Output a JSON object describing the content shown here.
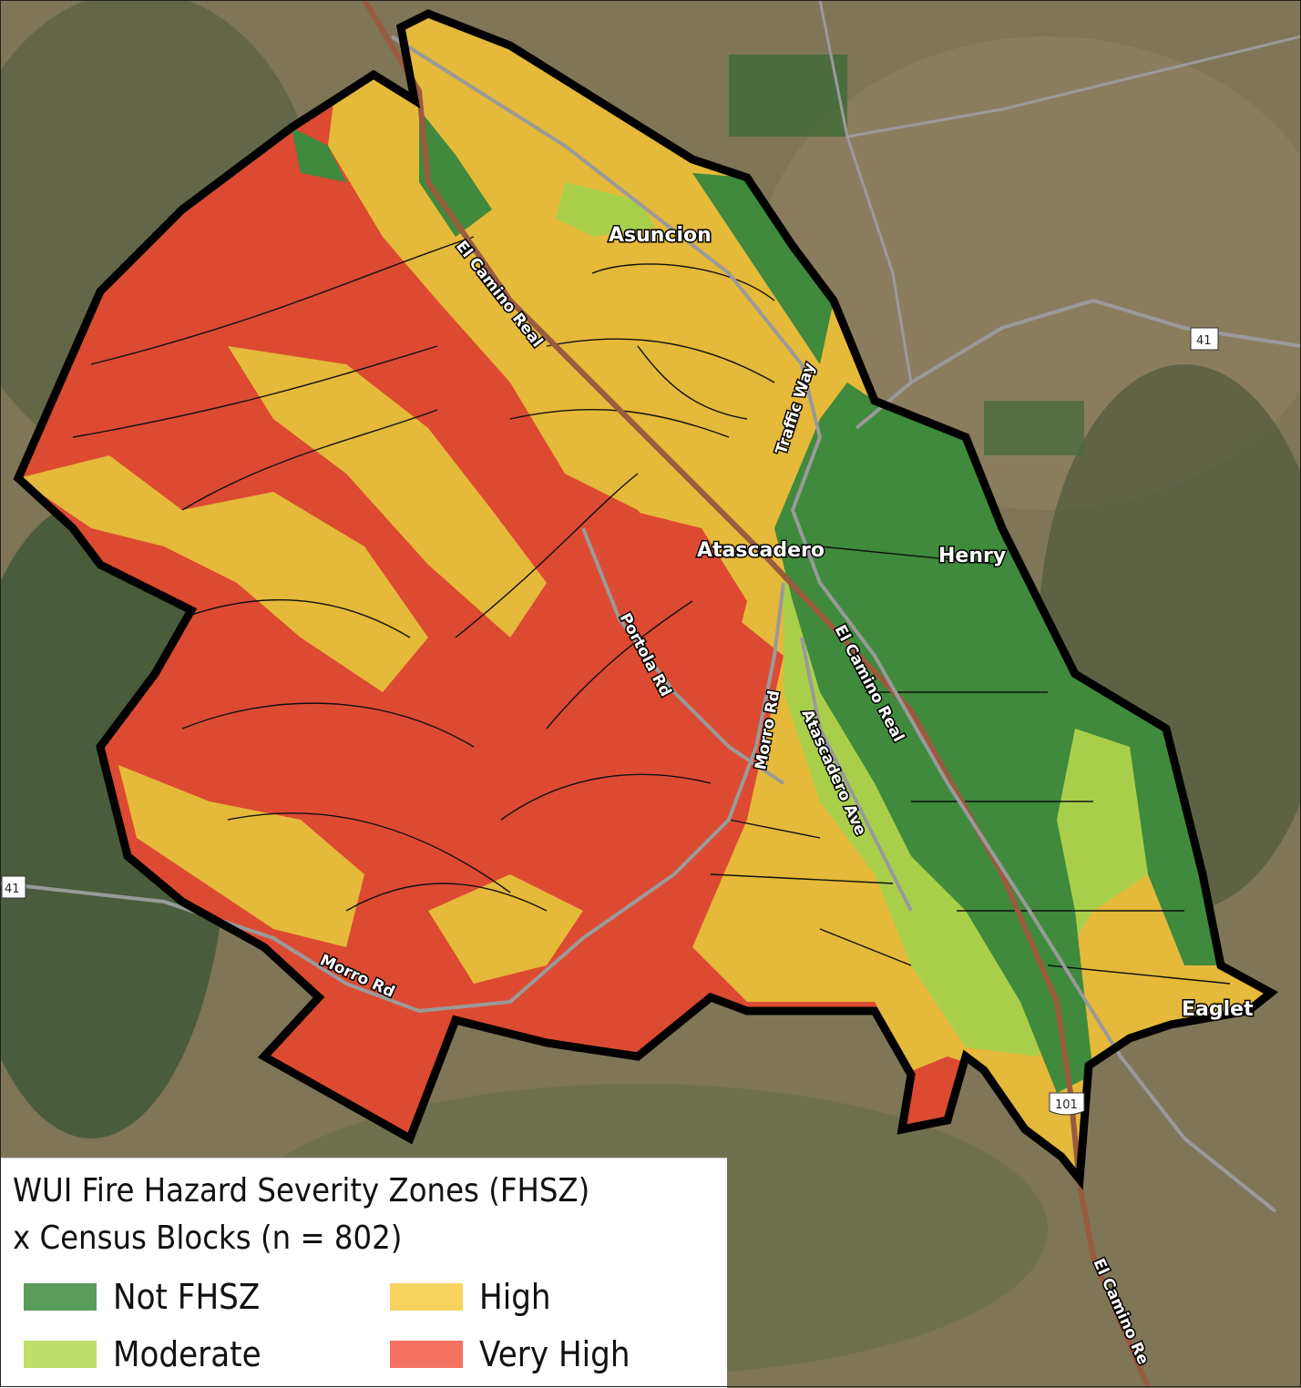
{
  "legend": {
    "title_line1": "WUI Fire Hazard Severity Zones (FHSZ)",
    "title_line2": "x Census Blocks (n = 802)",
    "items": [
      {
        "label": "Not FHSZ",
        "color": "#5a9c5c"
      },
      {
        "label": "High",
        "color": "#f7d35f"
      },
      {
        "label": "Moderate",
        "color": "#bfdd6a"
      },
      {
        "label": "Very High",
        "color": "#f57260"
      }
    ]
  },
  "map_colors": {
    "not_fhsz": "#3f8a3c",
    "moderate": "#a9cf4a",
    "high": "#e5b939",
    "very_high": "#dc4a32",
    "boundary": "#000000",
    "highway": "#9a5a40",
    "road": "#8a8a8a"
  },
  "places": {
    "asuncion": "Asuncion",
    "atascadero": "Atascadero",
    "henry": "Henry",
    "eaglet": "Eaglet"
  },
  "roads": {
    "el_camino_real_north": "El Camino Real",
    "el_camino_real_center": "El Camino Real",
    "el_camino_real_south": "El Camino Re",
    "traffic_way": "Traffic Way",
    "portola_rd": "Portola Rd",
    "morro_rd_center": "Morro Rd",
    "morro_rd_south": "Morro Rd",
    "atascadero_ave": "Atascadero Ave"
  },
  "shields": {
    "sr41_east": "41",
    "sr41_west": "41",
    "us101": "101"
  }
}
